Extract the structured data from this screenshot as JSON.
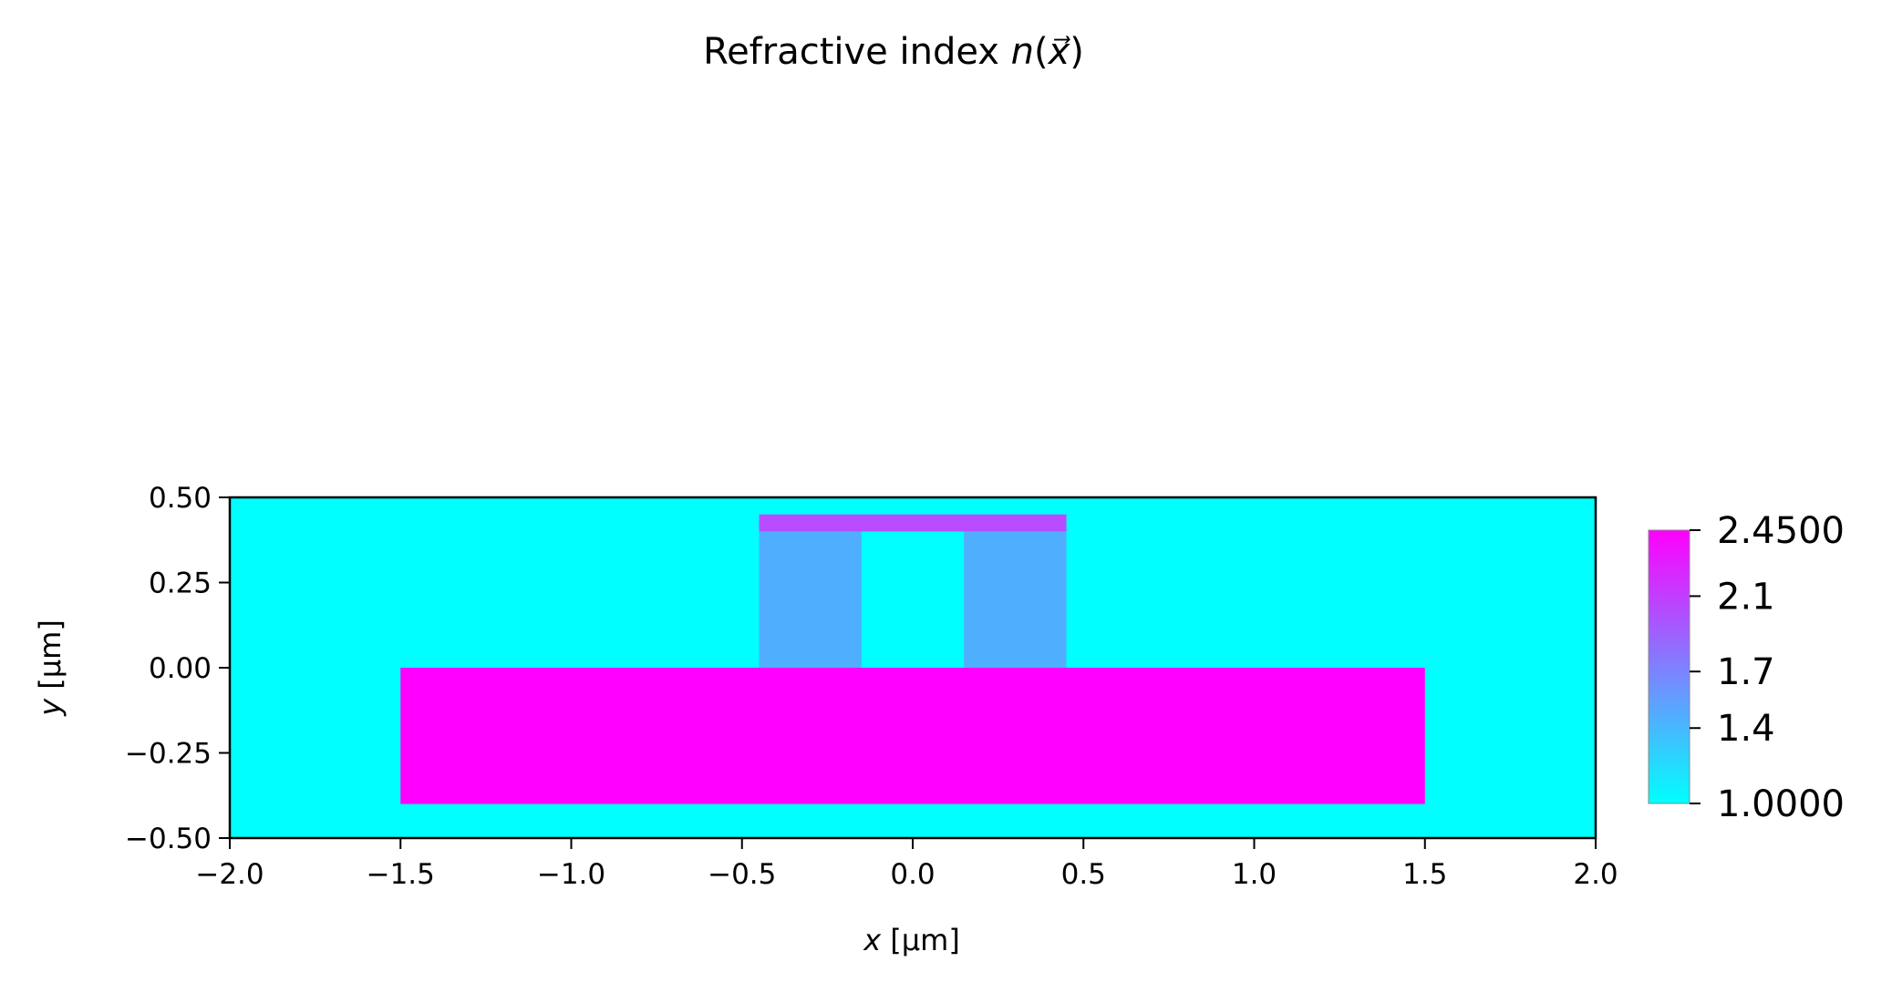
{
  "chart_data": {
    "type": "heatmap",
    "title": {
      "prefix": "Refractive index ",
      "math": "n",
      "open": "(",
      "vec": "x⃗",
      "close": ")"
    },
    "xlabel": {
      "var": "x",
      "unit": " [µm]"
    },
    "ylabel": {
      "var": "y",
      "unit": " [µm]"
    },
    "xlim": [
      -2.0,
      2.0
    ],
    "ylim": [
      -0.5,
      0.5
    ],
    "x_ticks": [
      "−2.0",
      "−1.5",
      "−1.0",
      "−0.5",
      "0.0",
      "0.5",
      "1.0",
      "1.5",
      "2.0"
    ],
    "x_tick_values": [
      -2.0,
      -1.5,
      -1.0,
      -0.5,
      0.0,
      0.5,
      1.0,
      1.5,
      2.0
    ],
    "y_ticks": [
      "0.50",
      "0.25",
      "0.00",
      "−0.25",
      "−0.50"
    ],
    "y_tick_values": [
      0.5,
      0.25,
      0.0,
      -0.25,
      -0.5
    ],
    "background": {
      "n": 1.0,
      "color": "#00ffff"
    },
    "regions": [
      {
        "name": "core-slab",
        "x": [
          -1.5,
          1.5
        ],
        "y": [
          -0.4,
          0.0
        ],
        "n": 2.45,
        "color": "#ff00ff"
      },
      {
        "name": "left-pillar",
        "x": [
          -0.45,
          -0.15
        ],
        "y": [
          0.0,
          0.4
        ],
        "n": 1.45,
        "color": "#50aeff"
      },
      {
        "name": "right-pillar",
        "x": [
          0.15,
          0.45
        ],
        "y": [
          0.0,
          0.4
        ],
        "n": 1.45,
        "color": "#50aeff"
      },
      {
        "name": "cap-layer",
        "x": [
          -0.45,
          0.45
        ],
        "y": [
          0.4,
          0.45
        ],
        "n": 2.0,
        "color": "#b84cff"
      }
    ],
    "colorbar": {
      "min": 1.0,
      "max": 2.45,
      "tick_labels": [
        "2.4500",
        "2.1",
        "1.7",
        "1.4",
        "1.0000"
      ],
      "tick_values": [
        2.45,
        2.1,
        1.7,
        1.4,
        1.0
      ],
      "colormap": "cool",
      "color_low": "#00ffff",
      "color_high": "#ff00ff"
    },
    "grid": false
  }
}
